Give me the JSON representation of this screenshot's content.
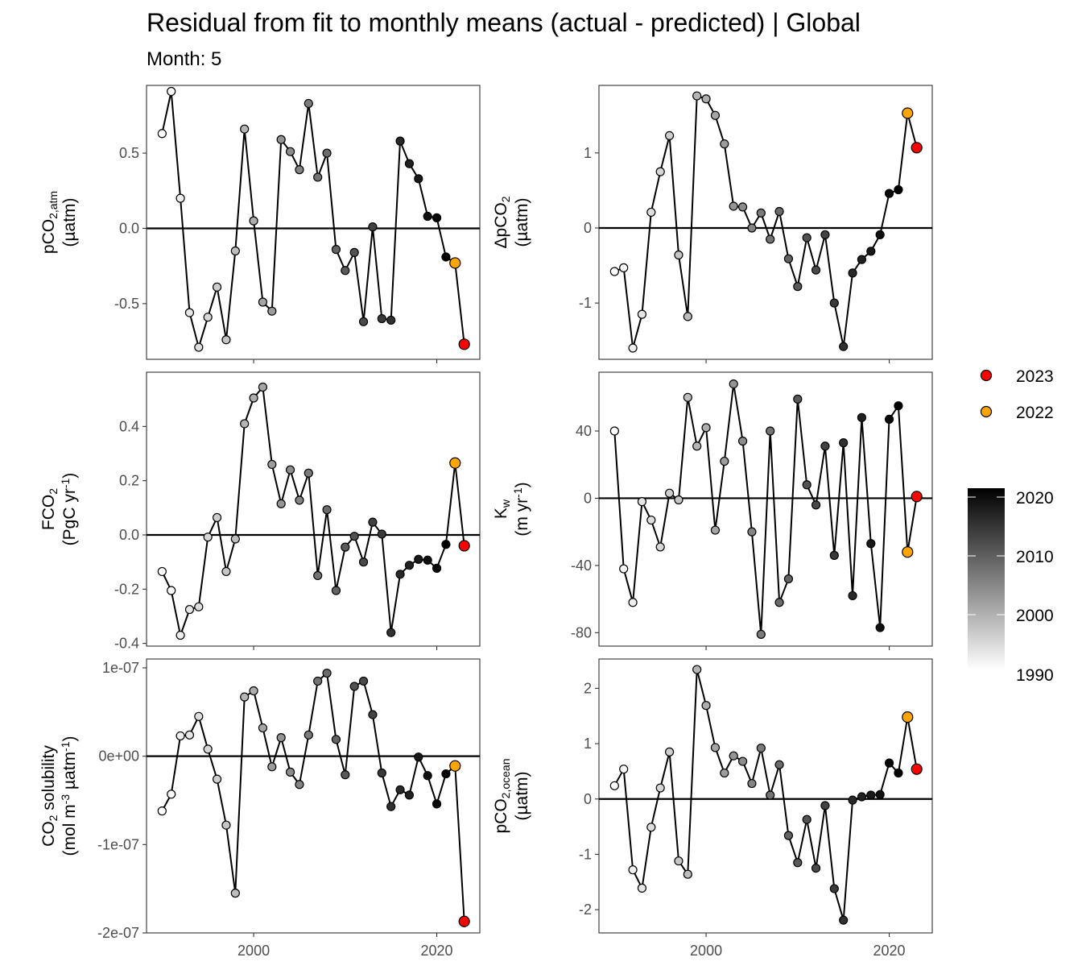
{
  "title": "Residual from fit to monthly means (actual - predicted) | Global",
  "subtitle": "Month: 5",
  "legend": {
    "highlight": [
      {
        "label": "2023",
        "color": "#ff0000"
      },
      {
        "label": "2022",
        "color": "#ffa500"
      }
    ],
    "colorbar": {
      "ticks": [
        "2020",
        "2010",
        "2000",
        "1990"
      ],
      "range": [
        1990,
        2021
      ]
    }
  },
  "x_axis": {
    "ticks": [
      2000,
      2020
    ],
    "range": [
      1988.3,
      2024.7
    ]
  },
  "chart_data": [
    {
      "type": "line",
      "id": "pco2-atm",
      "panel": "top-left",
      "ylabel_lines": [
        [
          "pCO",
          {
            "sub": "2,atm"
          }
        ],
        [
          "(µatm)"
        ]
      ],
      "yticks": [
        {
          "v": 0.5,
          "label": "0.5"
        },
        {
          "v": 0.0,
          "label": "0.0"
        },
        {
          "v": -0.5,
          "label": "-0.5"
        }
      ],
      "ylim": [
        -0.87,
        0.95
      ],
      "x": [
        1990,
        1991,
        1992,
        1993,
        1994,
        1995,
        1996,
        1997,
        1998,
        1999,
        2000,
        2001,
        2002,
        2003,
        2004,
        2005,
        2006,
        2007,
        2008,
        2009,
        2010,
        2011,
        2012,
        2013,
        2014,
        2015,
        2016,
        2017,
        2018,
        2019,
        2020,
        2021,
        2022,
        2023
      ],
      "y": [
        0.63,
        0.91,
        0.2,
        -0.56,
        -0.79,
        -0.59,
        -0.39,
        -0.74,
        -0.15,
        0.66,
        0.05,
        -0.49,
        -0.55,
        0.59,
        0.51,
        0.39,
        0.83,
        0.34,
        0.5,
        -0.14,
        -0.28,
        -0.16,
        -0.62,
        0.01,
        -0.6,
        -0.61,
        0.58,
        0.43,
        0.33,
        0.08,
        0.07,
        -0.19,
        -0.23,
        -0.77
      ]
    },
    {
      "type": "line",
      "id": "delta-pco2",
      "panel": "top-right",
      "ylabel_lines": [
        [
          "ΔpCO",
          {
            "sub": "2"
          }
        ],
        [
          "(µatm)"
        ]
      ],
      "yticks": [
        {
          "v": 1,
          "label": "1"
        },
        {
          "v": 0,
          "label": "0"
        },
        {
          "v": -1,
          "label": "-1"
        }
      ],
      "ylim": [
        -1.75,
        1.9
      ],
      "x": [
        1990,
        1991,
        1992,
        1993,
        1994,
        1995,
        1996,
        1997,
        1998,
        1999,
        2000,
        2001,
        2002,
        2003,
        2004,
        2005,
        2006,
        2007,
        2008,
        2009,
        2010,
        2011,
        2012,
        2013,
        2014,
        2015,
        2016,
        2017,
        2018,
        2019,
        2020,
        2021,
        2022,
        2023
      ],
      "y": [
        -0.58,
        -0.53,
        -1.6,
        -1.15,
        0.21,
        0.75,
        1.23,
        -0.36,
        -1.18,
        1.76,
        1.72,
        1.5,
        1.12,
        0.29,
        0.28,
        0.0,
        0.2,
        -0.15,
        0.22,
        -0.41,
        -0.78,
        -0.13,
        -0.56,
        -0.09,
        -1.0,
        -1.58,
        -0.6,
        -0.42,
        -0.31,
        -0.09,
        0.46,
        0.51,
        1.53,
        1.07
      ]
    },
    {
      "type": "line",
      "id": "fco2",
      "panel": "middle-left",
      "ylabel_lines": [
        [
          "FCO",
          {
            "sub": "2"
          }
        ],
        [
          "(PgC yr",
          {
            "sup": "-1"
          },
          ")"
        ]
      ],
      "yticks": [
        {
          "v": 0.4,
          "label": "0.4"
        },
        {
          "v": 0.2,
          "label": "0.2"
        },
        {
          "v": 0.0,
          "label": "0.0"
        },
        {
          "v": -0.2,
          "label": "-0.2"
        },
        {
          "v": -0.4,
          "label": "-0.4"
        }
      ],
      "ylim": [
        -0.41,
        0.6
      ],
      "x": [
        1990,
        1991,
        1992,
        1993,
        1994,
        1995,
        1996,
        1997,
        1998,
        1999,
        2000,
        2001,
        2002,
        2003,
        2004,
        2005,
        2006,
        2007,
        2008,
        2009,
        2010,
        2011,
        2012,
        2013,
        2014,
        2015,
        2016,
        2017,
        2018,
        2019,
        2020,
        2021,
        2022,
        2023
      ],
      "y": [
        -0.135,
        -0.205,
        -0.37,
        -0.275,
        -0.265,
        -0.008,
        0.064,
        -0.135,
        -0.015,
        0.41,
        0.505,
        0.545,
        0.26,
        0.115,
        0.24,
        0.128,
        0.228,
        -0.15,
        0.093,
        -0.205,
        -0.045,
        -0.005,
        -0.1,
        0.047,
        0.003,
        -0.36,
        -0.145,
        -0.112,
        -0.09,
        -0.093,
        -0.123,
        -0.035,
        0.265,
        -0.04
      ]
    },
    {
      "type": "line",
      "id": "kw",
      "panel": "middle-right",
      "ylabel_lines": [
        [
          "K",
          {
            "sub": "w"
          }
        ],
        [
          "(m yr",
          {
            "sup": "-1"
          },
          ")"
        ]
      ],
      "yticks": [
        {
          "v": 40,
          "label": "40"
        },
        {
          "v": 0,
          "label": "0"
        },
        {
          "v": -40,
          "label": "-40"
        },
        {
          "v": -80,
          "label": "-80"
        }
      ],
      "ylim": [
        -88,
        75
      ],
      "x": [
        1990,
        1991,
        1992,
        1993,
        1994,
        1995,
        1996,
        1997,
        1998,
        1999,
        2000,
        2001,
        2002,
        2003,
        2004,
        2005,
        2006,
        2007,
        2008,
        2009,
        2010,
        2011,
        2012,
        2013,
        2014,
        2015,
        2016,
        2017,
        2018,
        2019,
        2020,
        2021,
        2022,
        2023
      ],
      "y": [
        40,
        -42,
        -62,
        -2,
        -13,
        -29,
        3,
        -1,
        60,
        31,
        42,
        -19,
        22,
        68,
        34,
        -20,
        -81,
        40,
        -62,
        -48,
        59,
        8,
        -4,
        31,
        -34,
        33,
        -58,
        48,
        -27,
        -77,
        47,
        55,
        -32,
        1
      ]
    },
    {
      "type": "line",
      "id": "co2-solubility",
      "panel": "bottom-left",
      "ylabel_lines": [
        [
          "CO",
          {
            "sub": "2"
          },
          " solubility"
        ],
        [
          "(mol m",
          {
            "sup": "-3"
          },
          " µatm",
          {
            "sup": "-1"
          },
          ")"
        ]
      ],
      "yticks": [
        {
          "v": 1e-07,
          "label": "1e-07"
        },
        {
          "v": 0,
          "label": "0e+00"
        },
        {
          "v": -1e-07,
          "label": "-1e-07"
        },
        {
          "v": -2e-07,
          "label": "-2e-07"
        }
      ],
      "ylim": [
        -2e-07,
        1.1e-07
      ],
      "x": [
        1990,
        1991,
        1992,
        1993,
        1994,
        1995,
        1996,
        1997,
        1998,
        1999,
        2000,
        2001,
        2002,
        2003,
        2004,
        2005,
        2006,
        2007,
        2008,
        2009,
        2010,
        2011,
        2012,
        2013,
        2014,
        2015,
        2016,
        2017,
        2018,
        2019,
        2020,
        2021,
        2022,
        2023
      ],
      "y": [
        -6.2e-08,
        -4.3e-08,
        2.3e-08,
        2.4e-08,
        4.5e-08,
        8e-09,
        -2.6e-08,
        -7.8e-08,
        -1.55e-07,
        6.7e-08,
        7.4e-08,
        3.2e-08,
        -1.2e-08,
        2.1e-08,
        -1.8e-08,
        -3.2e-08,
        2.4e-08,
        8.5e-08,
        9.4e-08,
        1.9e-08,
        -2.1e-08,
        7.9e-08,
        8.5e-08,
        4.7e-08,
        -1.9e-08,
        -5.7e-08,
        -3.8e-08,
        -4.4e-08,
        -1e-09,
        -2.2e-08,
        -5.4e-08,
        -2e-08,
        -1.1e-08,
        -1.87e-07
      ]
    },
    {
      "type": "line",
      "id": "pco2-ocean",
      "panel": "bottom-right",
      "ylabel_lines": [
        [
          "pCO",
          {
            "sub": "2,ocean"
          }
        ],
        [
          "(µatm)"
        ]
      ],
      "yticks": [
        {
          "v": 2,
          "label": "2"
        },
        {
          "v": 1,
          "label": "1"
        },
        {
          "v": 0,
          "label": "0"
        },
        {
          "v": -1,
          "label": "-1"
        },
        {
          "v": -2,
          "label": "-2"
        }
      ],
      "ylim": [
        -2.42,
        2.53
      ],
      "x": [
        1990,
        1991,
        1992,
        1993,
        1994,
        1995,
        1996,
        1997,
        1998,
        1999,
        2000,
        2001,
        2002,
        2003,
        2004,
        2005,
        2006,
        2007,
        2008,
        2009,
        2010,
        2011,
        2012,
        2013,
        2014,
        2015,
        2016,
        2017,
        2018,
        2019,
        2020,
        2021,
        2022,
        2023
      ],
      "y": [
        0.24,
        0.54,
        -1.28,
        -1.61,
        -0.51,
        0.2,
        0.85,
        -1.12,
        -1.36,
        2.34,
        1.69,
        0.93,
        0.47,
        0.78,
        0.68,
        0.28,
        0.92,
        0.07,
        0.62,
        -0.66,
        -1.15,
        -0.37,
        -1.25,
        -0.12,
        -1.62,
        -2.19,
        -0.02,
        0.04,
        0.07,
        0.08,
        0.65,
        0.47,
        1.48,
        0.54
      ]
    }
  ]
}
